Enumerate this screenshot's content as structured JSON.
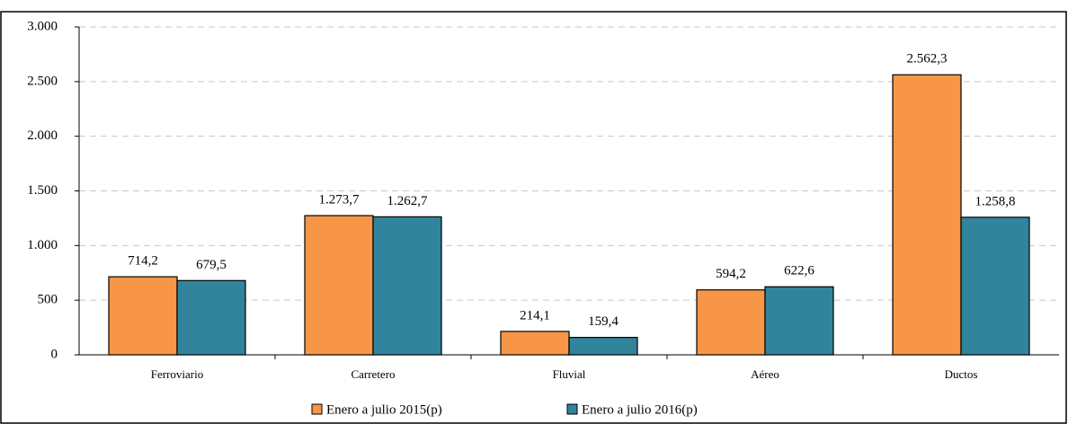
{
  "chart_data": {
    "type": "bar",
    "categories": [
      "Ferroviario",
      "Carretero",
      "Fluvial",
      "Aéreo",
      "Ductos"
    ],
    "series": [
      {
        "name": "Enero a julio 2015(p)",
        "color": "#f79646",
        "values": [
          714.2,
          1273.7,
          214.1,
          594.2,
          2562.3
        ],
        "value_labels": [
          "714,2",
          "1.273,7",
          "214,1",
          "594,2",
          "2.562,3"
        ]
      },
      {
        "name": "Enero a julio 2016(p)",
        "color": "#31849b",
        "values": [
          679.5,
          1262.7,
          159.4,
          622.6,
          1258.8
        ],
        "value_labels": [
          "679,5",
          "1.262,7",
          "159,4",
          "622,6",
          "1.258,8"
        ]
      }
    ],
    "ylim": [
      0,
      3000
    ],
    "yticks": [
      0,
      500,
      {
        "value": 1000,
        "label": "1.000"
      },
      {
        "value": 1500,
        "label": "1.500"
      },
      {
        "value": 2000,
        "label": "2.000"
      },
      {
        "value": 2500,
        "label": "2.500"
      },
      {
        "value": 3000,
        "label": "3.000"
      }
    ],
    "grid": true
  }
}
